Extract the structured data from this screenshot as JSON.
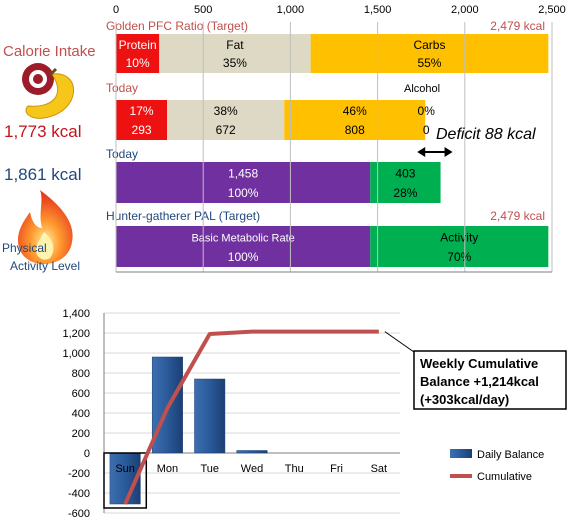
{
  "colors": {
    "protein": "#ee1111",
    "fat": "#ddd9c4",
    "carbs": "#ffc000",
    "bmr": "#7030a0",
    "activity": "#00b050",
    "red_text": "#c0504d",
    "blue_text": "#1f497d",
    "bar_blue": "#2a5a9a",
    "line_red": "#c0504d"
  },
  "top_chart": {
    "axis_ticks": [
      "0",
      "500",
      "1,000",
      "1,500",
      "2,000",
      "2,500"
    ],
    "axis_values": [
      0,
      500,
      1000,
      1500,
      2000,
      2500
    ],
    "rows": {
      "target_pfc": {
        "title": "Golden PFC Ratio (Target)",
        "total_label": "2,479 kcal",
        "segments": [
          {
            "name": "Protein",
            "pct": "10%",
            "start": 0,
            "end": 248,
            "color_key": "protein",
            "text_color": "#ffffff"
          },
          {
            "name": "Fat",
            "pct": "35%",
            "start": 248,
            "end": 1116,
            "color_key": "fat",
            "text_color": "#000000"
          },
          {
            "name": "Carbs",
            "pct": "55%",
            "start": 1116,
            "end": 2479,
            "color_key": "carbs",
            "text_color": "#000000"
          }
        ]
      },
      "today_intake": {
        "title": "Today",
        "alcohol_label": "Alcohol",
        "segments": [
          {
            "pct": "17%",
            "kcal": "293",
            "start": 0,
            "end": 293,
            "color_key": "protein",
            "text_color": "#ffffff"
          },
          {
            "pct": "38%",
            "kcal": "672",
            "start": 293,
            "end": 965,
            "color_key": "fat",
            "text_color": "#000000"
          },
          {
            "pct": "46%",
            "kcal": "808",
            "start": 965,
            "end": 1773,
            "color_key": "carbs",
            "text_color": "#000000"
          },
          {
            "pct": "0%",
            "kcal": "0",
            "start": 1773,
            "end": 1773,
            "color_key": "carbs",
            "text_color": "#000000"
          }
        ]
      },
      "today_burn": {
        "title": "Today",
        "segments": [
          {
            "value": "1,458",
            "pct": "100%",
            "start": 0,
            "end": 1458,
            "color_key": "bmr",
            "text_color": "#ffffff"
          },
          {
            "value": "403",
            "pct": "28%",
            "start": 1458,
            "end": 1861,
            "color_key": "activity",
            "text_color": "#000000"
          }
        ]
      },
      "target_pal": {
        "title": "Hunter-gatherer  PAL (Target)",
        "total_label": "2,479 kcal",
        "segments": [
          {
            "name": "Basic Metabolic Rate",
            "pct": "100%",
            "start": 0,
            "end": 1458,
            "color_key": "bmr",
            "text_color": "#ffffff"
          },
          {
            "name": "Activity",
            "pct": "70%",
            "start": 1458,
            "end": 2479,
            "color_key": "activity",
            "text_color": "#000000"
          }
        ]
      }
    },
    "deficit_label": "Deficit 88 kcal",
    "deficit_range": [
      1773,
      1861
    ]
  },
  "left_panel": {
    "calorie_intake_label": "Calorie Intake",
    "calorie_intake_value": "1,773 kcal",
    "burned_value": "1,861 kcal",
    "pal_line1": "Physical",
    "pal_line2": "Activity Level"
  },
  "chart_data": [
    {
      "type": "bar",
      "categories": [
        "Golden PFC Ratio (Target)",
        "Today",
        "Today",
        "Hunter-gatherer  PAL (Target)"
      ],
      "xlim": [
        0,
        2500
      ],
      "series": [
        {
          "name": "Protein",
          "values": [
            248,
            293,
            null,
            null
          ]
        },
        {
          "name": "Fat",
          "values": [
            868,
            672,
            null,
            null
          ]
        },
        {
          "name": "Carbs",
          "values": [
            1363,
            808,
            null,
            null
          ]
        },
        {
          "name": "Alcohol",
          "values": [
            null,
            0,
            null,
            null
          ]
        },
        {
          "name": "Basic Metabolic Rate",
          "values": [
            null,
            null,
            1458,
            1458
          ]
        },
        {
          "name": "Activity",
          "values": [
            null,
            null,
            403,
            1021
          ]
        }
      ]
    },
    {
      "type": "bar",
      "categories": [
        "Sun",
        "Mon",
        "Tue",
        "Wed",
        "Thu",
        "Fri",
        "Sat"
      ],
      "ylim": [
        -600,
        1400
      ],
      "yticks": [
        "1,400",
        "1,200",
        "1,000",
        "800",
        "600",
        "400",
        "200",
        "0",
        "-200",
        "-400",
        "-600"
      ],
      "ytick_values": [
        1400,
        1200,
        1000,
        800,
        600,
        400,
        200,
        0,
        -200,
        -400,
        -600
      ],
      "series": [
        {
          "name": "Daily Balance",
          "type": "bar",
          "values": [
            -510,
            960,
            740,
            25,
            0,
            0,
            0
          ]
        },
        {
          "name": "Cumulative",
          "type": "line",
          "values": [
            -510,
            450,
            1190,
            1214,
            1214,
            1214,
            1214
          ]
        }
      ],
      "legend": [
        "Daily Balance",
        "Cumulative"
      ],
      "legend_position": "bottom-right",
      "callout": {
        "line1": "Weekly Cumulative",
        "line2": "Balance +1,214kcal",
        "line3": "(+303kcal/day)"
      }
    }
  ]
}
